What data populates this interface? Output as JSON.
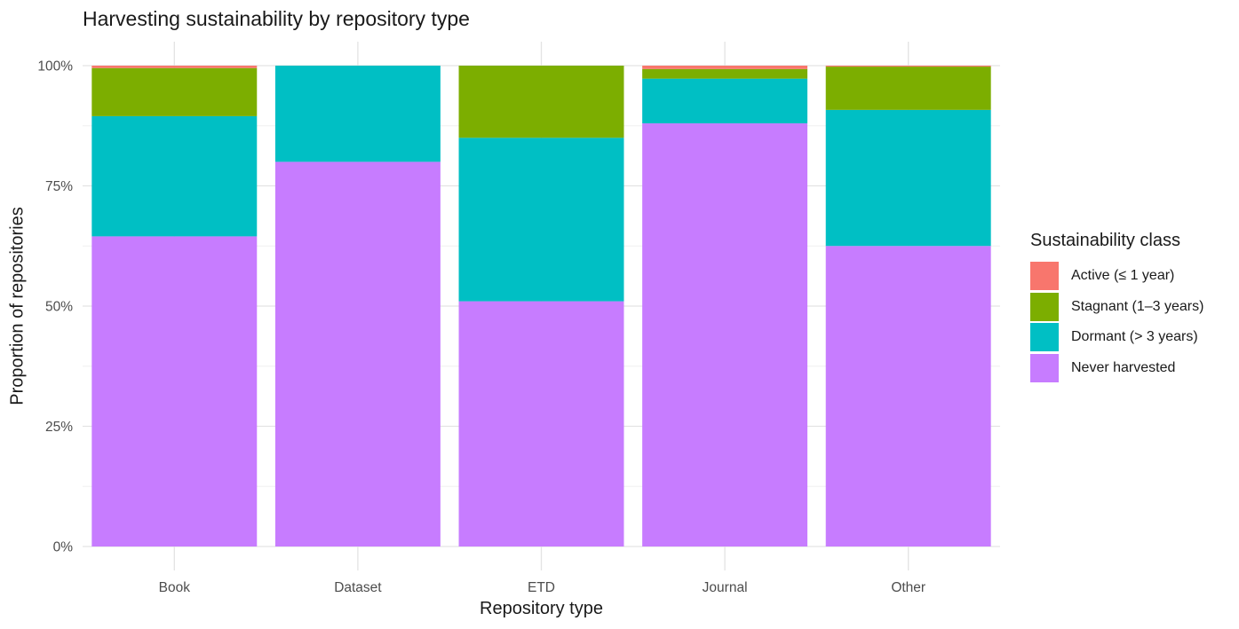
{
  "chart_data": {
    "type": "bar",
    "stacked": true,
    "title": "Harvesting sustainability by repository type",
    "xlabel": "Repository type",
    "ylabel": "Proportion of repositories",
    "ylim": [
      0,
      1
    ],
    "yticks": [
      "0%",
      "25%",
      "50%",
      "75%",
      "100%"
    ],
    "categories": [
      "Book",
      "Dataset",
      "ETD",
      "Journal",
      "Other"
    ],
    "legend_title": "Sustainability class",
    "legend_position": "right",
    "grid": true,
    "series": [
      {
        "name": "Active (≤ 1 year)",
        "color": "#F8766D",
        "values": [
          0.005,
          0.0,
          0.0,
          0.007,
          0.002
        ]
      },
      {
        "name": "Stagnant (1–3 years)",
        "color": "#7CAE00",
        "values": [
          0.1,
          0.0,
          0.15,
          0.02,
          0.09
        ]
      },
      {
        "name": "Dormant (> 3 years)",
        "color": "#00BFC4",
        "values": [
          0.25,
          0.2,
          0.34,
          0.093,
          0.283
        ]
      },
      {
        "name": "Never harvested",
        "color": "#C77CFF",
        "values": [
          0.645,
          0.8,
          0.51,
          0.88,
          0.625
        ]
      }
    ]
  }
}
